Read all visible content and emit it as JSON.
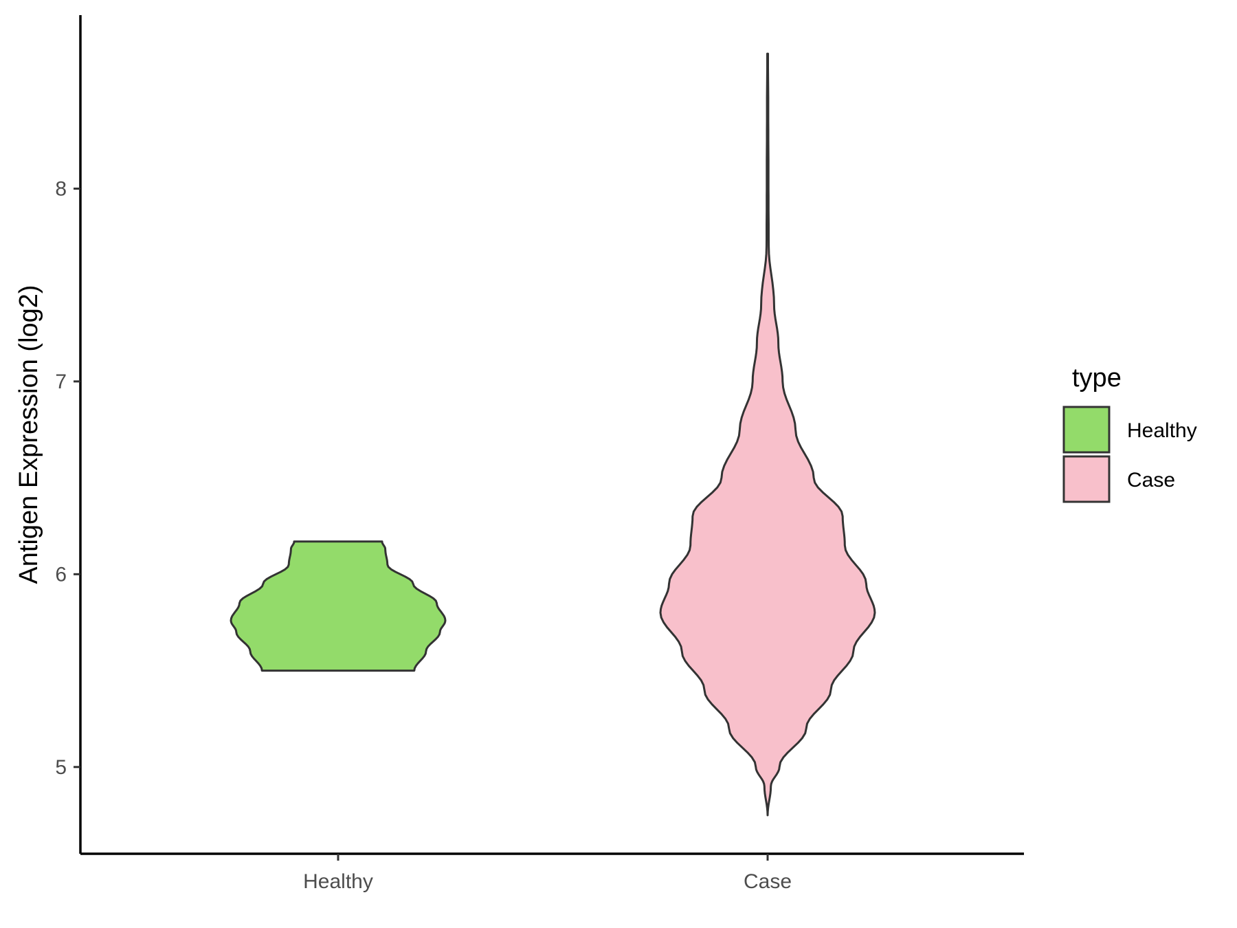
{
  "chart_data": {
    "type": "violin",
    "xlabel": "",
    "ylabel": "Antigen Expression (log2)",
    "ylim": [
      4.55,
      8.9
    ],
    "yticks": [
      5,
      6,
      7,
      8
    ],
    "categories": [
      "Healthy",
      "Case"
    ],
    "legend": {
      "title": "type",
      "placement": "right",
      "entries": [
        {
          "label": "Healthy",
          "color": "#93DB6A"
        },
        {
          "label": "Case",
          "color": "#F8C0CB"
        }
      ]
    },
    "series": [
      {
        "category": "Healthy",
        "color": "#93DB6A",
        "min": 5.5,
        "max": 6.17,
        "density_profile": [
          {
            "y": 5.5,
            "w": 0.71
          },
          {
            "y": 5.6,
            "w": 0.82
          },
          {
            "y": 5.7,
            "w": 0.95
          },
          {
            "y": 5.76,
            "w": 1.0
          },
          {
            "y": 5.85,
            "w": 0.92
          },
          {
            "y": 5.95,
            "w": 0.7
          },
          {
            "y": 6.05,
            "w": 0.46
          },
          {
            "y": 6.13,
            "w": 0.44
          },
          {
            "y": 6.17,
            "w": 0.41
          }
        ]
      },
      {
        "category": "Case",
        "color": "#F8C0CB",
        "min": 4.75,
        "max": 8.7,
        "density_profile": [
          {
            "y": 4.75,
            "w": 0.0
          },
          {
            "y": 4.9,
            "w": 0.03
          },
          {
            "y": 5.0,
            "w": 0.11
          },
          {
            "y": 5.2,
            "w": 0.36
          },
          {
            "y": 5.4,
            "w": 0.59
          },
          {
            "y": 5.6,
            "w": 0.8
          },
          {
            "y": 5.8,
            "w": 1.0
          },
          {
            "y": 5.95,
            "w": 0.92
          },
          {
            "y": 6.15,
            "w": 0.72
          },
          {
            "y": 6.3,
            "w": 0.7
          },
          {
            "y": 6.5,
            "w": 0.43
          },
          {
            "y": 6.75,
            "w": 0.26
          },
          {
            "y": 7.0,
            "w": 0.14
          },
          {
            "y": 7.2,
            "w": 0.1
          },
          {
            "y": 7.4,
            "w": 0.06
          },
          {
            "y": 7.7,
            "w": 0.01
          },
          {
            "y": 8.0,
            "w": 0.008
          },
          {
            "y": 8.4,
            "w": 0.006
          },
          {
            "y": 8.7,
            "w": 0.003
          }
        ]
      }
    ]
  }
}
